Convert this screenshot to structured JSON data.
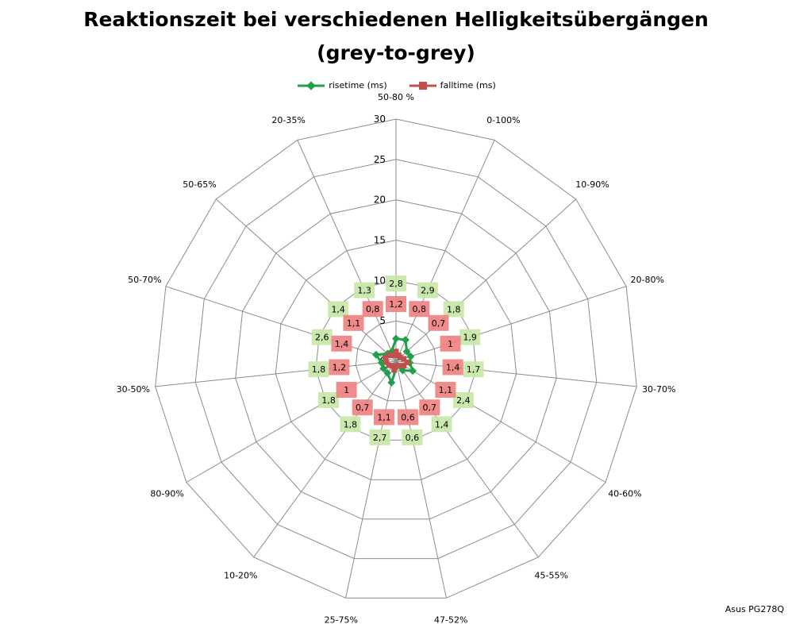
{
  "chart_data": {
    "type": "radar",
    "title": "Reaktionszeit bei verschiedenen Helligkeitsübergängen",
    "subtitle": "(grey-to-grey)",
    "categories": [
      "50-80 %",
      "0-100%",
      "10-90%",
      "20-80%",
      "30-70%",
      "40-60%",
      "45-55%",
      "47-52%",
      "25-75%",
      "10-20%",
      "80-90%",
      "30-50%",
      "50-70%",
      "50-65%",
      "20-35%"
    ],
    "rmax": 30,
    "ticks": [
      0,
      5,
      10,
      15,
      20,
      25,
      30
    ],
    "grid": true,
    "legend_position": "top",
    "series": [
      {
        "name": "risetime (ms)",
        "color": "#1fa04a",
        "label_bg": "#c6e8a6",
        "marker": "diamond",
        "values": [
          2.8,
          2.9,
          1.8,
          1.9,
          1.7,
          2.4,
          1.4,
          0.6,
          2.7,
          1.8,
          1.8,
          1.8,
          2.6,
          1.4,
          1.3
        ]
      },
      {
        "name": "falltime (ms)",
        "color": "#c0504d",
        "label_bg": "#f08080",
        "marker": "square",
        "values": [
          1.2,
          0.8,
          0.7,
          1.0,
          1.4,
          1.1,
          0.7,
          0.6,
          1.1,
          0.7,
          1.0,
          1.2,
          1.4,
          1.1,
          0.8
        ]
      }
    ]
  },
  "watermark": "Asus PG278Q"
}
